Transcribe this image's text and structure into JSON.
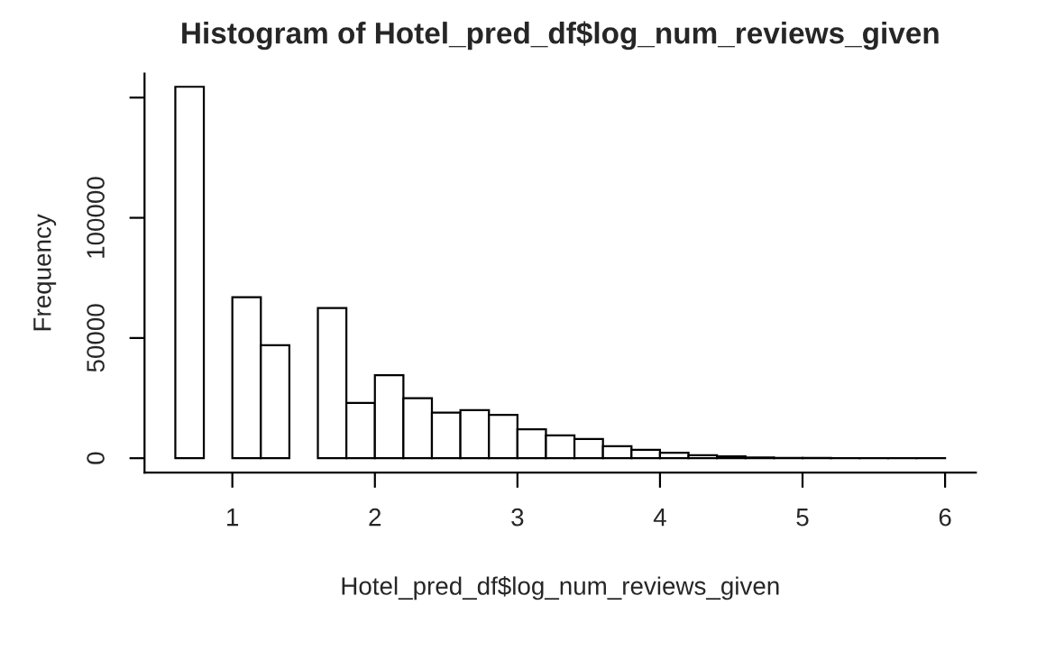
{
  "chart_data": {
    "type": "histogram",
    "title": "Histogram of Hotel_pred_df$log_num_reviews_given",
    "xlabel": "Hotel_pred_df$log_num_reviews_given",
    "ylabel": "Frequency",
    "bins": [
      0.6,
      0.8,
      1.0,
      1.2,
      1.4,
      1.6,
      1.8,
      2.0,
      2.2,
      2.4,
      2.6,
      2.8,
      3.0,
      3.2,
      3.4,
      3.6,
      3.8,
      4.0,
      4.2,
      4.4,
      4.6,
      4.8,
      5.0,
      5.2,
      5.4,
      5.6,
      5.8,
      6.0
    ],
    "values": [
      154500,
      0,
      67000,
      47000,
      0,
      62500,
      23000,
      34500,
      25000,
      19000,
      20000,
      18000,
      12000,
      9500,
      8000,
      5000,
      3500,
      2250,
      1250,
      750,
      300,
      150,
      100,
      50,
      30,
      20,
      10
    ],
    "color": "#ffffff",
    "xlim": [
      0.384,
      6.216
    ],
    "ylim": [
      -6000,
      160000
    ],
    "xticks": [
      1,
      2,
      3,
      4,
      5,
      6
    ],
    "yticks": [
      0,
      50000,
      100000,
      {
        "value": 150000,
        "label": null
      }
    ],
    "grid": false
  }
}
